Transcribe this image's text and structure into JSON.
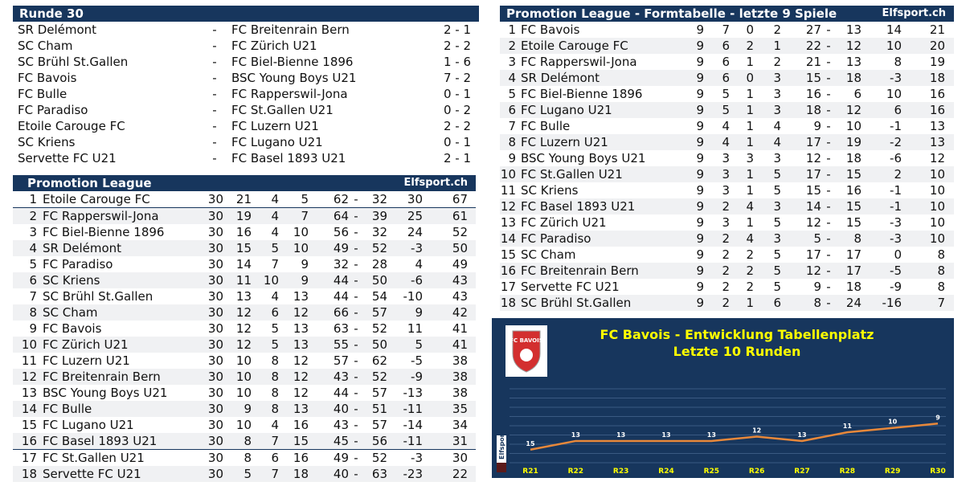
{
  "results": {
    "title": "Runde 30",
    "dash": "-",
    "matches": [
      {
        "home": "SR Delémont",
        "away": "FC Breitenrain Bern",
        "score": "2 - 1"
      },
      {
        "home": "SC Cham",
        "away": "FC Zürich U21",
        "score": "2 - 2"
      },
      {
        "home": "SC Brühl St.Gallen",
        "away": "FC Biel-Bienne 1896",
        "score": "1 - 6"
      },
      {
        "home": "FC Bavois",
        "away": "BSC Young Boys U21",
        "score": "7 - 2"
      },
      {
        "home": "FC Bulle",
        "away": "FC Rapperswil-Jona",
        "score": "0 - 1"
      },
      {
        "home": "FC Paradiso",
        "away": "FC St.Gallen U21",
        "score": "0 - 2"
      },
      {
        "home": "Etoile Carouge FC",
        "away": "FC Luzern U21",
        "score": "2 - 2"
      },
      {
        "home": "SC Kriens",
        "away": "FC Lugano U21",
        "score": "0 - 1"
      },
      {
        "home": "Servette FC U21",
        "away": "FC Basel 1893 U21",
        "score": "2 - 1"
      }
    ]
  },
  "standings": {
    "title": "Promotion League",
    "brand": "Elfsport.ch",
    "rows": [
      {
        "pos": "1",
        "team": "Etoile Carouge FC",
        "p": "30",
        "w": "21",
        "d": "4",
        "l": "5",
        "gf": "62",
        "ga": "32",
        "gd": "30",
        "pts": "67"
      },
      {
        "pos": "2",
        "team": "FC Rapperswil-Jona",
        "p": "30",
        "w": "19",
        "d": "4",
        "l": "7",
        "gf": "64",
        "ga": "39",
        "gd": "25",
        "pts": "61"
      },
      {
        "pos": "3",
        "team": "FC Biel-Bienne 1896",
        "p": "30",
        "w": "16",
        "d": "4",
        "l": "10",
        "gf": "56",
        "ga": "32",
        "gd": "24",
        "pts": "52"
      },
      {
        "pos": "4",
        "team": "SR Delémont",
        "p": "30",
        "w": "15",
        "d": "5",
        "l": "10",
        "gf": "49",
        "ga": "52",
        "gd": "-3",
        "pts": "50"
      },
      {
        "pos": "5",
        "team": "FC Paradiso",
        "p": "30",
        "w": "14",
        "d": "7",
        "l": "9",
        "gf": "32",
        "ga": "28",
        "gd": "4",
        "pts": "49"
      },
      {
        "pos": "6",
        "team": "SC Kriens",
        "p": "30",
        "w": "11",
        "d": "10",
        "l": "9",
        "gf": "44",
        "ga": "50",
        "gd": "-6",
        "pts": "43"
      },
      {
        "pos": "7",
        "team": "SC Brühl St.Gallen",
        "p": "30",
        "w": "13",
        "d": "4",
        "l": "13",
        "gf": "44",
        "ga": "54",
        "gd": "-10",
        "pts": "43"
      },
      {
        "pos": "8",
        "team": "SC Cham",
        "p": "30",
        "w": "12",
        "d": "6",
        "l": "12",
        "gf": "66",
        "ga": "57",
        "gd": "9",
        "pts": "42"
      },
      {
        "pos": "9",
        "team": "FC Bavois",
        "p": "30",
        "w": "12",
        "d": "5",
        "l": "13",
        "gf": "63",
        "ga": "52",
        "gd": "11",
        "pts": "41"
      },
      {
        "pos": "10",
        "team": "FC Zürich U21",
        "p": "30",
        "w": "12",
        "d": "5",
        "l": "13",
        "gf": "55",
        "ga": "50",
        "gd": "5",
        "pts": "41"
      },
      {
        "pos": "11",
        "team": "FC Luzern U21",
        "p": "30",
        "w": "10",
        "d": "8",
        "l": "12",
        "gf": "57",
        "ga": "62",
        "gd": "-5",
        "pts": "38"
      },
      {
        "pos": "12",
        "team": "FC Breitenrain Bern",
        "p": "30",
        "w": "10",
        "d": "8",
        "l": "12",
        "gf": "43",
        "ga": "52",
        "gd": "-9",
        "pts": "38"
      },
      {
        "pos": "13",
        "team": "BSC Young Boys U21",
        "p": "30",
        "w": "10",
        "d": "8",
        "l": "12",
        "gf": "44",
        "ga": "57",
        "gd": "-13",
        "pts": "38"
      },
      {
        "pos": "14",
        "team": "FC Bulle",
        "p": "30",
        "w": "9",
        "d": "8",
        "l": "13",
        "gf": "40",
        "ga": "51",
        "gd": "-11",
        "pts": "35"
      },
      {
        "pos": "15",
        "team": "FC Lugano U21",
        "p": "30",
        "w": "10",
        "d": "4",
        "l": "16",
        "gf": "43",
        "ga": "57",
        "gd": "-14",
        "pts": "34"
      },
      {
        "pos": "16",
        "team": "FC Basel 1893 U21",
        "p": "30",
        "w": "8",
        "d": "7",
        "l": "15",
        "gf": "45",
        "ga": "56",
        "gd": "-11",
        "pts": "31"
      },
      {
        "pos": "17",
        "team": "FC St.Gallen U21",
        "p": "30",
        "w": "8",
        "d": "6",
        "l": "16",
        "gf": "49",
        "ga": "52",
        "gd": "-3",
        "pts": "30"
      },
      {
        "pos": "18",
        "team": "Servette FC U21",
        "p": "30",
        "w": "5",
        "d": "7",
        "l": "18",
        "gf": "40",
        "ga": "63",
        "gd": "-23",
        "pts": "22"
      }
    ]
  },
  "form": {
    "title": "Promotion League - Formtabelle - letzte 9 Spiele",
    "brand": "Elfsport.ch",
    "rows": [
      {
        "pos": "1",
        "team": "FC Bavois",
        "p": "9",
        "w": "7",
        "d": "0",
        "l": "2",
        "gf": "27",
        "ga": "13",
        "gd": "14",
        "pts": "21"
      },
      {
        "pos": "2",
        "team": "Etoile Carouge FC",
        "p": "9",
        "w": "6",
        "d": "2",
        "l": "1",
        "gf": "22",
        "ga": "12",
        "gd": "10",
        "pts": "20"
      },
      {
        "pos": "3",
        "team": "FC Rapperswil-Jona",
        "p": "9",
        "w": "6",
        "d": "1",
        "l": "2",
        "gf": "21",
        "ga": "13",
        "gd": "8",
        "pts": "19"
      },
      {
        "pos": "4",
        "team": "SR Delémont",
        "p": "9",
        "w": "6",
        "d": "0",
        "l": "3",
        "gf": "15",
        "ga": "18",
        "gd": "-3",
        "pts": "18"
      },
      {
        "pos": "5",
        "team": "FC Biel-Bienne 1896",
        "p": "9",
        "w": "5",
        "d": "1",
        "l": "3",
        "gf": "16",
        "ga": "6",
        "gd": "10",
        "pts": "16"
      },
      {
        "pos": "6",
        "team": "FC Lugano U21",
        "p": "9",
        "w": "5",
        "d": "1",
        "l": "3",
        "gf": "18",
        "ga": "12",
        "gd": "6",
        "pts": "16"
      },
      {
        "pos": "7",
        "team": "FC Bulle",
        "p": "9",
        "w": "4",
        "d": "1",
        "l": "4",
        "gf": "9",
        "ga": "10",
        "gd": "-1",
        "pts": "13"
      },
      {
        "pos": "8",
        "team": "FC Luzern U21",
        "p": "9",
        "w": "4",
        "d": "1",
        "l": "4",
        "gf": "17",
        "ga": "19",
        "gd": "-2",
        "pts": "13"
      },
      {
        "pos": "9",
        "team": "BSC Young Boys U21",
        "p": "9",
        "w": "3",
        "d": "3",
        "l": "3",
        "gf": "12",
        "ga": "18",
        "gd": "-6",
        "pts": "12"
      },
      {
        "pos": "10",
        "team": "FC St.Gallen U21",
        "p": "9",
        "w": "3",
        "d": "1",
        "l": "5",
        "gf": "17",
        "ga": "15",
        "gd": "2",
        "pts": "10"
      },
      {
        "pos": "11",
        "team": "SC Kriens",
        "p": "9",
        "w": "3",
        "d": "1",
        "l": "5",
        "gf": "15",
        "ga": "16",
        "gd": "-1",
        "pts": "10"
      },
      {
        "pos": "12",
        "team": "FC Basel 1893 U21",
        "p": "9",
        "w": "2",
        "d": "4",
        "l": "3",
        "gf": "14",
        "ga": "15",
        "gd": "-1",
        "pts": "10"
      },
      {
        "pos": "13",
        "team": "FC Zürich U21",
        "p": "9",
        "w": "3",
        "d": "1",
        "l": "5",
        "gf": "12",
        "ga": "15",
        "gd": "-3",
        "pts": "10"
      },
      {
        "pos": "14",
        "team": "FC Paradiso",
        "p": "9",
        "w": "2",
        "d": "4",
        "l": "3",
        "gf": "5",
        "ga": "8",
        "gd": "-3",
        "pts": "10"
      },
      {
        "pos": "15",
        "team": "SC Cham",
        "p": "9",
        "w": "2",
        "d": "2",
        "l": "5",
        "gf": "17",
        "ga": "17",
        "gd": "0",
        "pts": "8"
      },
      {
        "pos": "16",
        "team": "FC Breitenrain Bern",
        "p": "9",
        "w": "2",
        "d": "2",
        "l": "5",
        "gf": "12",
        "ga": "17",
        "gd": "-5",
        "pts": "8"
      },
      {
        "pos": "17",
        "team": "Servette FC U21",
        "p": "9",
        "w": "2",
        "d": "2",
        "l": "5",
        "gf": "9",
        "ga": "18",
        "gd": "-9",
        "pts": "8"
      },
      {
        "pos": "18",
        "team": "SC Brühl St.Gallen",
        "p": "9",
        "w": "2",
        "d": "1",
        "l": "6",
        "gf": "8",
        "ga": "24",
        "gd": "-16",
        "pts": "7"
      }
    ]
  },
  "chart_data": {
    "type": "line",
    "title": "FC Bavois - Entwicklung Tabellenplatz",
    "subtitle": "Letzte 10 Runden",
    "categories": [
      "R21",
      "R22",
      "R23",
      "R24",
      "R25",
      "R26",
      "R27",
      "R28",
      "R29",
      "R30"
    ],
    "series": [
      {
        "values": [
          15,
          13,
          13,
          13,
          13,
          12,
          13,
          11,
          10,
          9
        ]
      }
    ],
    "ylim": [
      18,
      1
    ],
    "logo_text": "FC BAVOIS",
    "watermark": "Elfsport",
    "colors": {
      "background": "#17365d",
      "line": "#e8883a",
      "title": "#ffff00",
      "labels": "#ffffff",
      "grid": "#3a5a82"
    }
  }
}
